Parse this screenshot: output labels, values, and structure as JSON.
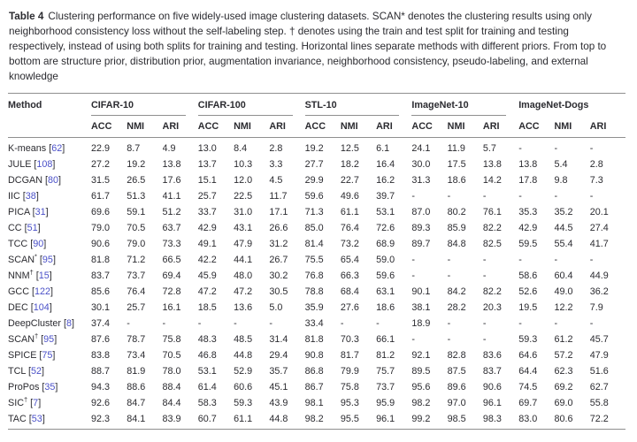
{
  "caption": {
    "label": "Table 4",
    "text": "Clustering performance on five widely-used image clustering datasets. SCAN* denotes the clustering results using only neighborhood consistency loss without the self-labeling step. † denotes using the train and test split for training and testing respectively, instead of using both splits for training and testing. Horizontal lines separate methods with different priors. From top to bottom are structure prior, distribution prior, augmentation invariance, neighborhood consistency, pseudo-labeling, and external knowledge"
  },
  "table": {
    "method_header": "Method",
    "metrics": [
      "ACC",
      "NMI",
      "ARI"
    ],
    "datasets": [
      {
        "name": "CIFAR-10",
        "underline": true
      },
      {
        "name": "CIFAR-100",
        "underline": true
      },
      {
        "name": "STL-10",
        "underline": true
      },
      {
        "name": "ImageNet-10",
        "underline": true
      },
      {
        "name": "ImageNet-Dogs",
        "underline": false
      }
    ],
    "rows": [
      {
        "method": "K-means",
        "sup": "",
        "cite": "62",
        "values": [
          "22.9",
          "8.7",
          "4.9",
          "13.0",
          "8.4",
          "2.8",
          "19.2",
          "12.5",
          "6.1",
          "24.1",
          "11.9",
          "5.7",
          "-",
          "-",
          "-"
        ]
      },
      {
        "method": "JULE",
        "sup": "",
        "cite": "108",
        "values": [
          "27.2",
          "19.2",
          "13.8",
          "13.7",
          "10.3",
          "3.3",
          "27.7",
          "18.2",
          "16.4",
          "30.0",
          "17.5",
          "13.8",
          "13.8",
          "5.4",
          "2.8"
        ]
      },
      {
        "method": "DCGAN",
        "sup": "",
        "cite": "80",
        "values": [
          "31.5",
          "26.5",
          "17.6",
          "15.1",
          "12.0",
          "4.5",
          "29.9",
          "22.7",
          "16.2",
          "31.3",
          "18.6",
          "14.2",
          "17.8",
          "9.8",
          "7.3"
        ]
      },
      {
        "method": "IIC",
        "sup": "",
        "cite": "38",
        "values": [
          "61.7",
          "51.3",
          "41.1",
          "25.7",
          "22.5",
          "11.7",
          "59.6",
          "49.6",
          "39.7",
          "-",
          "-",
          "-",
          "-",
          "-",
          "-"
        ]
      },
      {
        "method": "PICA",
        "sup": "",
        "cite": "31",
        "values": [
          "69.6",
          "59.1",
          "51.2",
          "33.7",
          "31.0",
          "17.1",
          "71.3",
          "61.1",
          "53.1",
          "87.0",
          "80.2",
          "76.1",
          "35.3",
          "35.2",
          "20.1"
        ]
      },
      {
        "method": "CC",
        "sup": "",
        "cite": "51",
        "values": [
          "79.0",
          "70.5",
          "63.7",
          "42.9",
          "43.1",
          "26.6",
          "85.0",
          "76.4",
          "72.6",
          "89.3",
          "85.9",
          "82.2",
          "42.9",
          "44.5",
          "27.4"
        ]
      },
      {
        "method": "TCC",
        "sup": "",
        "cite": "90",
        "values": [
          "90.6",
          "79.0",
          "73.3",
          "49.1",
          "47.9",
          "31.2",
          "81.4",
          "73.2",
          "68.9",
          "89.7",
          "84.8",
          "82.5",
          "59.5",
          "55.4",
          "41.7"
        ]
      },
      {
        "method": "SCAN",
        "sup": "*",
        "cite": "95",
        "values": [
          "81.8",
          "71.2",
          "66.5",
          "42.2",
          "44.1",
          "26.7",
          "75.5",
          "65.4",
          "59.0",
          "-",
          "-",
          "-",
          "-",
          "-",
          "-"
        ]
      },
      {
        "method": "NNM",
        "sup": "†",
        "cite": "15",
        "values": [
          "83.7",
          "73.7",
          "69.4",
          "45.9",
          "48.0",
          "30.2",
          "76.8",
          "66.3",
          "59.6",
          "-",
          "-",
          "-",
          "58.6",
          "60.4",
          "44.9"
        ]
      },
      {
        "method": "GCC",
        "sup": "",
        "cite": "122",
        "values": [
          "85.6",
          "76.4",
          "72.8",
          "47.2",
          "47.2",
          "30.5",
          "78.8",
          "68.4",
          "63.1",
          "90.1",
          "84.2",
          "82.2",
          "52.6",
          "49.0",
          "36.2"
        ]
      },
      {
        "method": "DEC",
        "sup": "",
        "cite": "104",
        "values": [
          "30.1",
          "25.7",
          "16.1",
          "18.5",
          "13.6",
          "5.0",
          "35.9",
          "27.6",
          "18.6",
          "38.1",
          "28.2",
          "20.3",
          "19.5",
          "12.2",
          "7.9"
        ]
      },
      {
        "method": "DeepCluster",
        "sup": "",
        "cite": "8",
        "values": [
          "37.4",
          "-",
          "-",
          "-",
          "-",
          "-",
          "33.4",
          "-",
          "-",
          "18.9",
          "-",
          "-",
          "-",
          "-",
          "-"
        ]
      },
      {
        "method": "SCAN",
        "sup": "†",
        "cite": "95",
        "values": [
          "87.6",
          "78.7",
          "75.8",
          "48.3",
          "48.5",
          "31.4",
          "81.8",
          "70.3",
          "66.1",
          "-",
          "-",
          "-",
          "59.3",
          "61.2",
          "45.7"
        ]
      },
      {
        "method": "SPICE",
        "sup": "",
        "cite": "75",
        "values": [
          "83.8",
          "73.4",
          "70.5",
          "46.8",
          "44.8",
          "29.4",
          "90.8",
          "81.7",
          "81.2",
          "92.1",
          "82.8",
          "83.6",
          "64.6",
          "57.2",
          "47.9"
        ]
      },
      {
        "method": "TCL",
        "sup": "",
        "cite": "52",
        "values": [
          "88.7",
          "81.9",
          "78.0",
          "53.1",
          "52.9",
          "35.7",
          "86.8",
          "79.9",
          "75.7",
          "89.5",
          "87.5",
          "83.7",
          "64.4",
          "62.3",
          "51.6"
        ]
      },
      {
        "method": "ProPos",
        "sup": "",
        "cite": "35",
        "values": [
          "94.3",
          "88.6",
          "88.4",
          "61.4",
          "60.6",
          "45.1",
          "86.7",
          "75.8",
          "73.7",
          "95.6",
          "89.6",
          "90.6",
          "74.5",
          "69.2",
          "62.7"
        ]
      },
      {
        "method": "SIC",
        "sup": "†",
        "cite": "7",
        "values": [
          "92.6",
          "84.7",
          "84.4",
          "58.3",
          "59.3",
          "43.9",
          "98.1",
          "95.3",
          "95.9",
          "98.2",
          "97.0",
          "96.1",
          "69.7",
          "69.0",
          "55.8"
        ]
      },
      {
        "method": "TAC",
        "sup": "",
        "cite": "53",
        "values": [
          "92.3",
          "84.1",
          "83.9",
          "60.7",
          "61.1",
          "44.8",
          "98.2",
          "95.5",
          "96.1",
          "99.2",
          "98.5",
          "98.3",
          "83.0",
          "80.6",
          "72.2"
        ]
      }
    ]
  },
  "colors": {
    "text": "#2b2b30",
    "link": "#4a50c8",
    "rule": "#8f8f8f",
    "background": "#ffffff"
  }
}
